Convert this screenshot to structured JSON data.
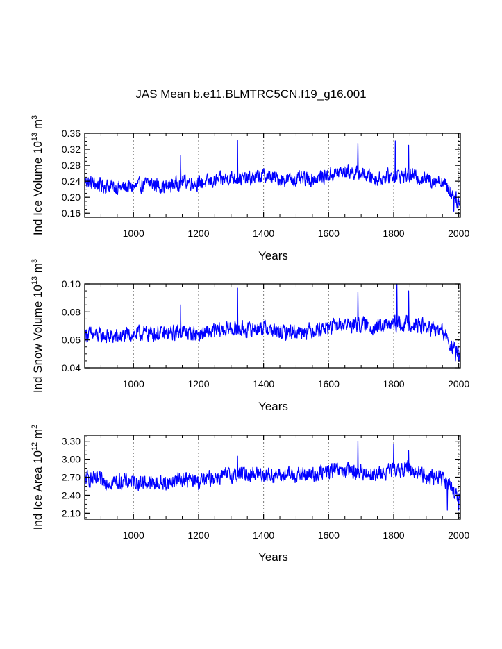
{
  "figure": {
    "title": "JAS Mean b.e11.BLMTRC5CN.f19_g16.001",
    "line_color": "#0000ff",
    "grid_color": "#777777"
  },
  "chart_data": [
    {
      "type": "line",
      "title": "JAS Mean b.e11.BLMTRC5CN.f19_g16.001",
      "xlabel": "Years",
      "ylabel": {
        "prefix": "Ind Ice Volume 10",
        "exp1": "13",
        "mid": " m",
        "exp2": "3"
      },
      "xlim": [
        850,
        2005
      ],
      "ylim": [
        0.15,
        0.36
      ],
      "xticks": [
        1000,
        1200,
        1400,
        1600,
        1800,
        2000
      ],
      "xtick_labels": [
        "1000",
        "1200",
        "1400",
        "1600",
        "1800",
        "2000"
      ],
      "yticks": [
        0.16,
        0.2,
        0.24,
        0.28,
        0.32,
        0.36
      ],
      "ytick_labels": [
        "0.16",
        "0.20",
        "0.24",
        "0.28",
        "0.32",
        "0.36"
      ],
      "grid_x": [
        1000,
        1200,
        1400,
        1600,
        1800,
        2000
      ],
      "x_start": 850,
      "x_end": 2005,
      "series": [
        {
          "name": "Ind Ice Volume",
          "knots": [
            [
              850,
              0.24
            ],
            [
              900,
              0.23
            ],
            [
              950,
              0.225
            ],
            [
              1000,
              0.225
            ],
            [
              1050,
              0.235
            ],
            [
              1100,
              0.225
            ],
            [
              1150,
              0.24
            ],
            [
              1200,
              0.235
            ],
            [
              1250,
              0.24
            ],
            [
              1300,
              0.25
            ],
            [
              1350,
              0.245
            ],
            [
              1400,
              0.255
            ],
            [
              1450,
              0.245
            ],
            [
              1500,
              0.245
            ],
            [
              1550,
              0.245
            ],
            [
              1600,
              0.255
            ],
            [
              1650,
              0.265
            ],
            [
              1700,
              0.26
            ],
            [
              1750,
              0.245
            ],
            [
              1800,
              0.255
            ],
            [
              1850,
              0.255
            ],
            [
              1900,
              0.245
            ],
            [
              1950,
              0.24
            ],
            [
              1970,
              0.22
            ],
            [
              1990,
              0.2
            ],
            [
              2005,
              0.18
            ]
          ],
          "noise": 0.018,
          "spikes": [
            [
              1320,
              0.342
            ],
            [
              1805,
              0.341
            ],
            [
              1846,
              0.33
            ],
            [
              1690,
              0.335
            ],
            [
              1145,
              0.305
            ],
            [
              1985,
              0.165
            ]
          ],
          "clip": [
            0.163,
            0.345
          ]
        }
      ]
    },
    {
      "type": "line",
      "xlabel": "Years",
      "ylabel": {
        "prefix": "Ind Snow Volume 10",
        "exp1": "13",
        "mid": " m",
        "exp2": "3"
      },
      "xlim": [
        850,
        2005
      ],
      "ylim": [
        0.04,
        0.1
      ],
      "xticks": [
        1000,
        1200,
        1400,
        1600,
        1800,
        2000
      ],
      "xtick_labels": [
        "1000",
        "1200",
        "1400",
        "1600",
        "1800",
        "2000"
      ],
      "yticks": [
        0.04,
        0.06,
        0.08,
        0.1
      ],
      "ytick_labels": [
        "0.04",
        "0.06",
        "0.08",
        "0.10"
      ],
      "grid_x": [
        1000,
        1200,
        1400,
        1600,
        1800,
        2000
      ],
      "x_start": 850,
      "x_end": 2005,
      "series": [
        {
          "name": "Ind Snow Volume",
          "knots": [
            [
              850,
              0.064
            ],
            [
              900,
              0.063
            ],
            [
              950,
              0.062
            ],
            [
              1000,
              0.064
            ],
            [
              1050,
              0.065
            ],
            [
              1100,
              0.064
            ],
            [
              1150,
              0.066
            ],
            [
              1200,
              0.064
            ],
            [
              1250,
              0.066
            ],
            [
              1300,
              0.068
            ],
            [
              1350,
              0.067
            ],
            [
              1400,
              0.069
            ],
            [
              1450,
              0.065
            ],
            [
              1500,
              0.066
            ],
            [
              1550,
              0.067
            ],
            [
              1600,
              0.069
            ],
            [
              1650,
              0.071
            ],
            [
              1700,
              0.071
            ],
            [
              1750,
              0.069
            ],
            [
              1800,
              0.071
            ],
            [
              1850,
              0.072
            ],
            [
              1900,
              0.069
            ],
            [
              1950,
              0.066
            ],
            [
              1970,
              0.058
            ],
            [
              1990,
              0.052
            ],
            [
              2005,
              0.05
            ]
          ],
          "noise": 0.0055,
          "spikes": [
            [
              1320,
              0.097
            ],
            [
              1810,
              0.1
            ],
            [
              1846,
              0.095
            ],
            [
              1690,
              0.094
            ],
            [
              1145,
              0.085
            ],
            [
              1990,
              0.045
            ]
          ],
          "clip": [
            0.044,
            0.1
          ]
        }
      ]
    },
    {
      "type": "line",
      "xlabel": "Years",
      "ylabel": {
        "prefix": "Ind Ice Area 10",
        "exp1": "12",
        "mid": " m",
        "exp2": "2"
      },
      "xlim": [
        850,
        2005
      ],
      "ylim": [
        2.0,
        3.4
      ],
      "xticks": [
        1000,
        1200,
        1400,
        1600,
        1800,
        2000
      ],
      "xtick_labels": [
        "1000",
        "1200",
        "1400",
        "1600",
        "1800",
        "2000"
      ],
      "yticks": [
        2.1,
        2.4,
        2.7,
        3.0,
        3.3
      ],
      "ytick_labels": [
        "2.10",
        "2.40",
        "2.70",
        "3.00",
        "3.30"
      ],
      "grid_x": [
        1000,
        1200,
        1400,
        1600,
        1800,
        2000
      ],
      "x_start": 850,
      "x_end": 2005,
      "series": [
        {
          "name": "Ind Ice Area",
          "knots": [
            [
              850,
              2.68
            ],
            [
              900,
              2.64
            ],
            [
              950,
              2.62
            ],
            [
              1000,
              2.63
            ],
            [
              1050,
              2.6
            ],
            [
              1100,
              2.6
            ],
            [
              1150,
              2.68
            ],
            [
              1200,
              2.62
            ],
            [
              1250,
              2.7
            ],
            [
              1300,
              2.74
            ],
            [
              1350,
              2.76
            ],
            [
              1400,
              2.75
            ],
            [
              1450,
              2.72
            ],
            [
              1500,
              2.74
            ],
            [
              1550,
              2.74
            ],
            [
              1600,
              2.8
            ],
            [
              1650,
              2.8
            ],
            [
              1700,
              2.78
            ],
            [
              1750,
              2.74
            ],
            [
              1800,
              2.82
            ],
            [
              1850,
              2.84
            ],
            [
              1900,
              2.72
            ],
            [
              1950,
              2.7
            ],
            [
              1970,
              2.55
            ],
            [
              1990,
              2.4
            ],
            [
              2005,
              2.3
            ]
          ],
          "noise": 0.13,
          "spikes": [
            [
              1690,
              3.3
            ],
            [
              1800,
              3.25
            ],
            [
              1846,
              3.14
            ],
            [
              1320,
              3.05
            ],
            [
              1965,
              2.15
            ],
            [
              2000,
              2.15
            ]
          ],
          "clip": [
            2.13,
            3.32
          ]
        }
      ]
    }
  ]
}
